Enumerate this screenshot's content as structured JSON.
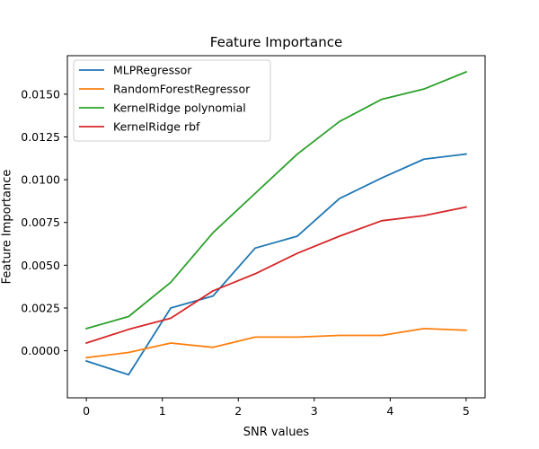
{
  "chart_data": {
    "type": "line",
    "title": "Feature Importance",
    "xlabel": "SNR values",
    "ylabel": "Feature Importance",
    "xlim": [
      -0.25,
      5.25
    ],
    "ylim": [
      -0.00275,
      0.01725
    ],
    "x_ticks": [
      0,
      1,
      2,
      3,
      4,
      5
    ],
    "x_tick_labels": [
      "0",
      "1",
      "2",
      "3",
      "4",
      "5"
    ],
    "y_ticks": [
      0.0,
      0.0025,
      0.005,
      0.0075,
      0.01,
      0.0125,
      0.015
    ],
    "y_tick_labels": [
      "0.0000",
      "0.0025",
      "0.0050",
      "0.0075",
      "0.0100",
      "0.0125",
      "0.0150"
    ],
    "grid": false,
    "legend_position": "top-left",
    "x": [
      0,
      0.556,
      1.111,
      1.667,
      2.222,
      2.778,
      3.333,
      3.889,
      4.444,
      5.0
    ],
    "series": [
      {
        "name": "MLPRegressor",
        "color": "#1f77b4",
        "values": [
          -0.0006,
          -0.0014,
          0.0025,
          0.0032,
          0.006,
          0.0067,
          0.0089,
          0.0101,
          0.0112,
          0.0115
        ]
      },
      {
        "name": "RandomForestRegressor",
        "color": "#ff7f0e",
        "values": [
          -0.0004,
          -0.0001,
          0.00045,
          0.0002,
          0.0008,
          0.0008,
          0.0009,
          0.0009,
          0.0013,
          0.0012
        ]
      },
      {
        "name": "KernelRidge polynomial",
        "color": "#2ca02c",
        "values": [
          0.0013,
          0.002,
          0.004,
          0.0069,
          0.0092,
          0.0115,
          0.0134,
          0.0147,
          0.0153,
          0.0163
        ]
      },
      {
        "name": "KernelRidge rbf",
        "color": "#d62728",
        "values": [
          0.00045,
          0.00125,
          0.0019,
          0.0035,
          0.0045,
          0.0057,
          0.0067,
          0.0076,
          0.0079,
          0.0084
        ]
      }
    ]
  }
}
